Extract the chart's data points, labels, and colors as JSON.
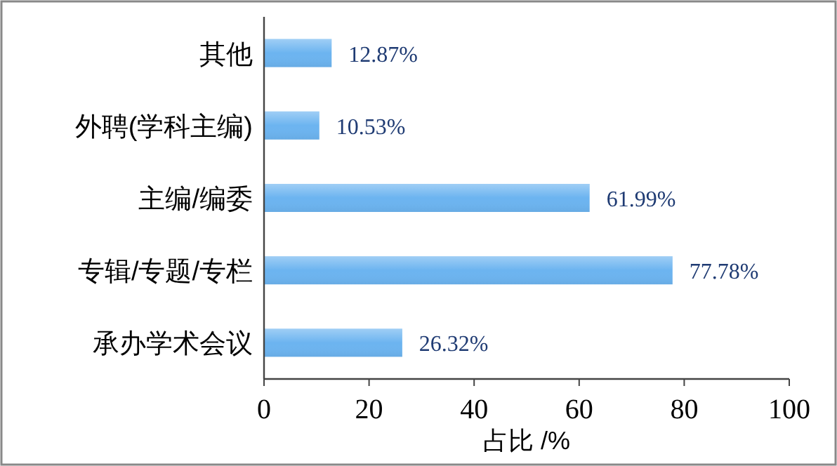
{
  "chart_data": {
    "type": "bar",
    "orientation": "horizontal",
    "xlabel": "占比 /%",
    "categories": [
      "其他",
      "外聘(学科主编)",
      "主编/编委",
      "专辑/专题/专栏",
      "承办学术会议"
    ],
    "values": [
      12.87,
      10.53,
      61.99,
      77.78,
      26.32
    ],
    "value_labels": [
      "12.87%",
      "10.53%",
      "61.99%",
      "77.78%",
      "26.32%"
    ],
    "color": "#6cb4f0",
    "xlim": [
      0,
      100
    ],
    "xticks": [
      0,
      20,
      40,
      60,
      80,
      100
    ],
    "grid": false
  }
}
